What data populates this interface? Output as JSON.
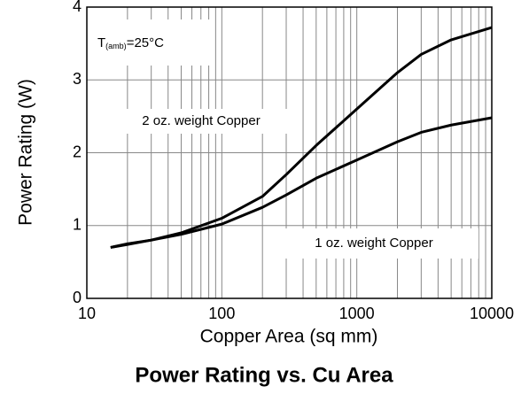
{
  "chart_data": {
    "type": "line",
    "title": "Power Rating vs. Cu Area",
    "xlabel": "Copper Area (sq mm)",
    "ylabel": "Power Rating (W)",
    "annotations": [
      {
        "text": "T",
        "sub": "(amb)",
        "rest": "=25°C"
      },
      "2 oz. weight Copper",
      "1 oz. weight Copper"
    ],
    "x": [
      15,
      20,
      30,
      50,
      100,
      200,
      300,
      500,
      1000,
      2000,
      3000,
      5000,
      10000
    ],
    "series": [
      {
        "name": "2 oz. weight Copper",
        "color": "#000000",
        "values": [
          0.7,
          0.75,
          0.8,
          0.9,
          1.1,
          1.4,
          1.7,
          2.1,
          2.6,
          3.1,
          3.35,
          3.55,
          3.72
        ]
      },
      {
        "name": "1 oz. weight Copper",
        "color": "#000000",
        "values": [
          0.7,
          0.74,
          0.8,
          0.88,
          1.02,
          1.25,
          1.42,
          1.65,
          1.9,
          2.15,
          2.28,
          2.38,
          2.48
        ]
      }
    ],
    "xscale": "log",
    "xlim": [
      10,
      10000
    ],
    "xticks": [
      10,
      100,
      1000,
      10000
    ],
    "xminorticks": [
      20,
      30,
      40,
      50,
      60,
      70,
      80,
      90,
      200,
      300,
      400,
      500,
      600,
      700,
      800,
      900,
      2000,
      3000,
      4000,
      5000,
      6000,
      7000,
      8000,
      9000
    ],
    "ylim": [
      0,
      4
    ],
    "yticks": [
      0,
      1,
      2,
      3,
      4
    ],
    "grid": true
  }
}
